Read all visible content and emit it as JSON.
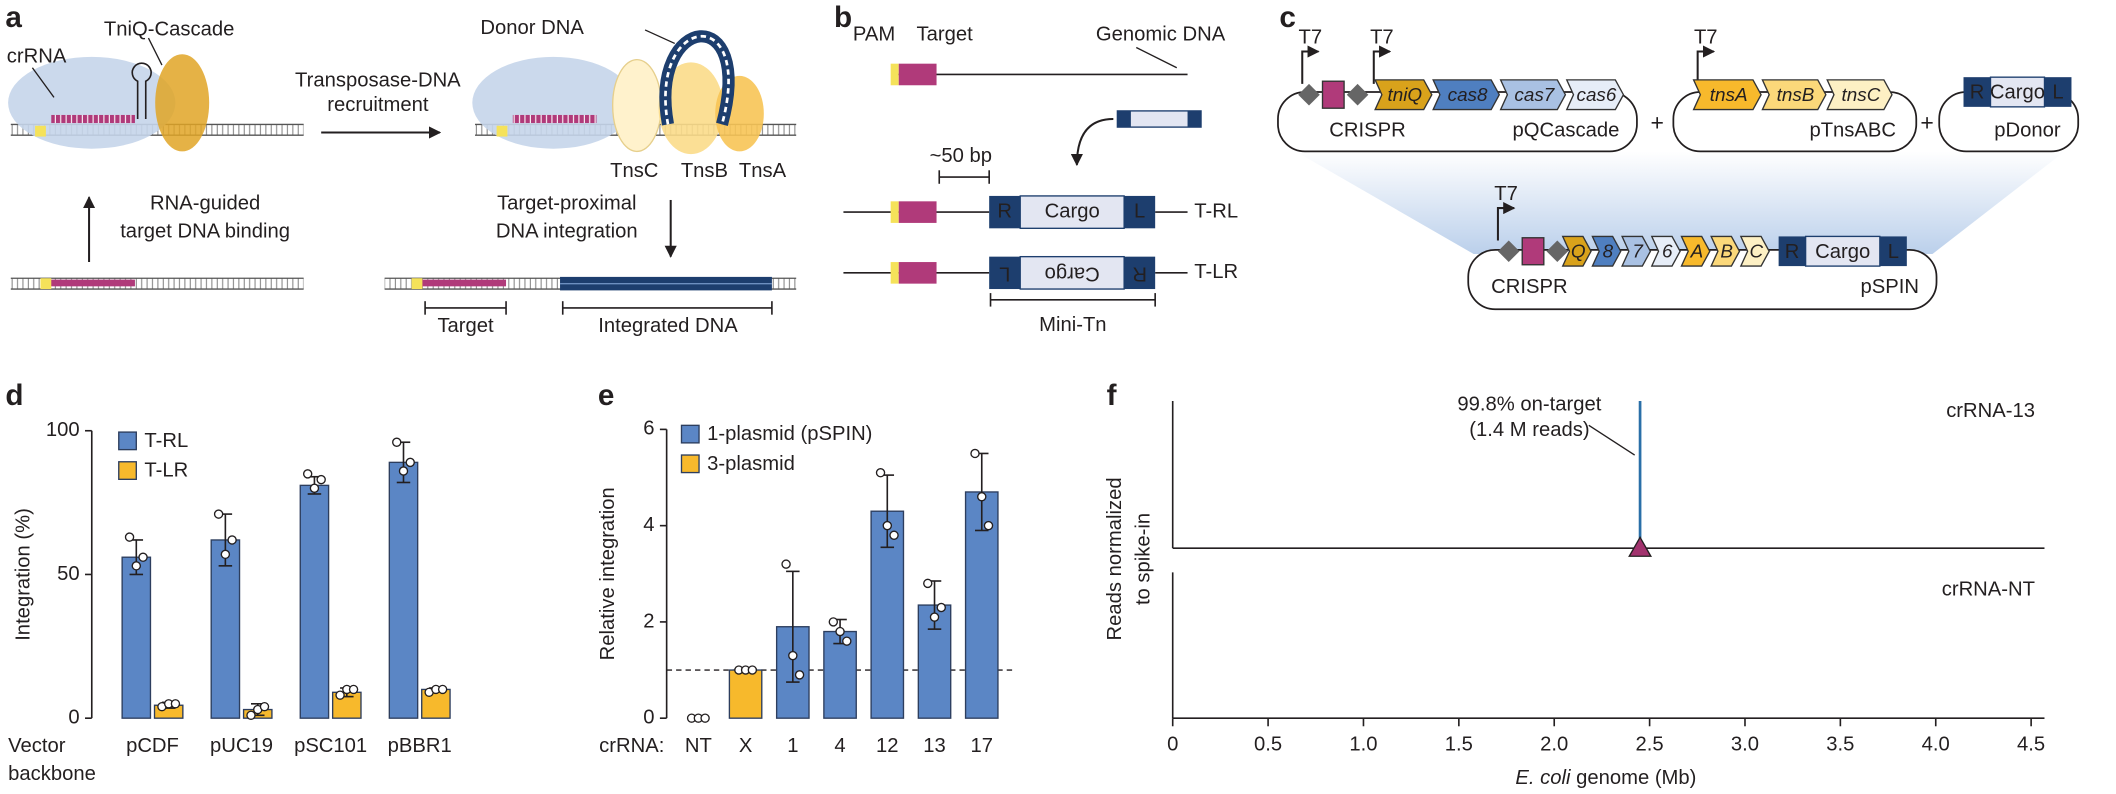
{
  "panel_labels": [
    "a",
    "b",
    "c",
    "d",
    "e",
    "f"
  ],
  "diagram_a": {
    "crRNA": "crRNA",
    "complex": "TniQ-Cascade",
    "step1": [
      "Transposase-DNA",
      "recruitment"
    ],
    "donor": "Donor DNA",
    "proteins": [
      "TnsC",
      "TnsB",
      "TnsA"
    ],
    "step0": [
      "RNA-guided",
      "target DNA binding"
    ],
    "step2": [
      "Target-proximal",
      "DNA integration"
    ],
    "target": "Target",
    "integrated": "Integrated DNA"
  },
  "diagram_b": {
    "pam": "PAM",
    "target": "Target",
    "genomic": "Genomic DNA",
    "distance": "~50 bp",
    "right_end": "R",
    "cargo": "Cargo",
    "left_end": "L",
    "products": [
      "T-RL",
      "T-LR"
    ],
    "mini_tn": "Mini-Tn"
  },
  "diagram_c": {
    "promoter": "T7",
    "crispr": "CRISPR",
    "plus": "+",
    "right_end": "R",
    "cargo": "Cargo",
    "left_end": "L",
    "plasmids": [
      {
        "name": "pQCascade",
        "genes": [
          "tniQ",
          "cas8",
          "cas7",
          "cas6"
        ]
      },
      {
        "name": "pTnsABC",
        "genes": [
          "tnsA",
          "tnsB",
          "tnsC"
        ]
      },
      {
        "name": "pDonor"
      },
      {
        "name": "pSPIN",
        "genes": [
          "Q",
          "8",
          "7",
          "6",
          "A",
          "B",
          "C"
        ]
      }
    ]
  },
  "chart_data": [
    {
      "type": "bar",
      "y_label": "Integration (%)",
      "x_label": [
        "Vector",
        "backbone"
      ],
      "categories": [
        "pCDF",
        "pUC19",
        "pSC101",
        "pBBR1"
      ],
      "ylim": [
        0,
        100
      ],
      "yticks": [
        0,
        50,
        100
      ],
      "series": [
        {
          "name": "T-RL",
          "color": "#5b86c5",
          "values": [
            56,
            62,
            81,
            89
          ],
          "errors": [
            6,
            9,
            3,
            7
          ],
          "points": [
            [
              63,
              53,
              56
            ],
            [
              71,
              57,
              62
            ],
            [
              85,
              80,
              83
            ],
            [
              96,
              86,
              89
            ]
          ]
        },
        {
          "name": "T-LR",
          "color": "#f7b92c",
          "values": [
            4.5,
            3,
            9,
            10
          ],
          "errors": [
            1,
            2,
            1.5,
            0.5
          ],
          "points": [
            [
              4,
              5,
              5
            ],
            [
              1,
              3,
              4
            ],
            [
              8,
              10,
              10
            ],
            [
              9,
              10,
              10
            ]
          ]
        }
      ]
    },
    {
      "type": "bar",
      "y_label": "Relative integration",
      "x_label": [
        "crRNA:"
      ],
      "categories": [
        "NT",
        "X",
        "1",
        "4",
        "12",
        "13",
        "17"
      ],
      "ylim": [
        0,
        6
      ],
      "yticks": [
        0,
        2,
        4,
        6
      ],
      "reference_line": 1,
      "series": [
        {
          "name": "1-plasmid (pSPIN)",
          "color": "#5b86c5",
          "values": [
            0,
            null,
            1.9,
            1.8,
            4.3,
            2.35,
            4.7
          ],
          "errors": [
            null,
            null,
            1.15,
            0.25,
            0.75,
            0.5,
            0.8
          ],
          "points": [
            [
              0,
              0,
              0
            ],
            null,
            [
              3.2,
              1.3,
              0.9
            ],
            [
              2.0,
              1.8,
              1.6
            ],
            [
              5.1,
              4.0,
              3.8
            ],
            [
              2.8,
              2.1,
              2.3
            ],
            [
              5.5,
              4.6,
              4.0
            ]
          ]
        },
        {
          "name": "3-plasmid",
          "color": "#f7b92c",
          "values": [
            null,
            1,
            null,
            null,
            null,
            null,
            null
          ],
          "errors": [
            null,
            null,
            null,
            null,
            null,
            null,
            null
          ],
          "points": [
            null,
            [
              1,
              1,
              1
            ],
            null,
            null,
            null,
            null,
            null
          ]
        }
      ]
    },
    {
      "type": "spike",
      "y_label": [
        "Reads normalized",
        "to spike-in"
      ],
      "x_label": [
        "E. coli",
        "genome (Mb)"
      ],
      "xlim": [
        0,
        4.57
      ],
      "xticks": [
        0,
        0.5,
        {
          "value": 1,
          "label": "1.0"
        },
        1.5,
        {
          "value": 2,
          "label": "2.0"
        },
        2.5,
        {
          "value": 3,
          "label": "3.0"
        },
        3.5,
        {
          "value": 4,
          "label": "4.0"
        },
        4.5
      ],
      "annotation": [
        "99.8% on-target",
        "(1.4 M reads)"
      ],
      "marker_color": "#a2336e",
      "series": [
        {
          "name": "crRNA-13",
          "color": "#2a6fa8",
          "x": [
            2.45
          ]
        },
        {
          "name": "crRNA-NT",
          "color": "#2a6fa8",
          "x": []
        }
      ]
    }
  ]
}
